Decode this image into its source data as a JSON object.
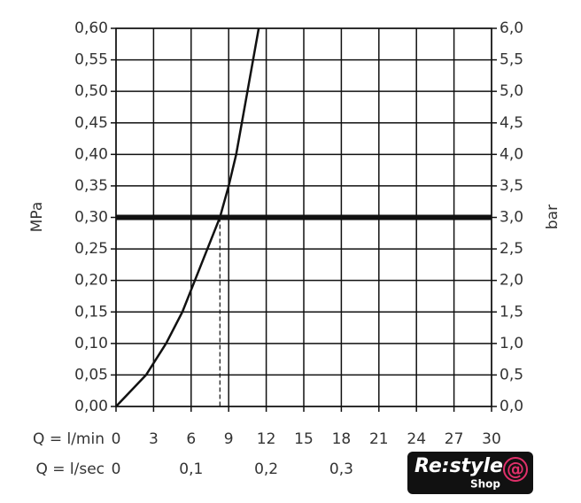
{
  "chart_data": {
    "type": "line",
    "x_label": "Q = l/min",
    "x2_label": "Q = l/sec",
    "y_label": "MPa",
    "y2_label": "bar",
    "x": [
      0,
      2.4,
      4.0,
      5.3,
      6.3,
      7.3,
      8.3,
      9.0,
      9.6,
      10.5,
      11.4
    ],
    "values": [
      0,
      0.05,
      0.1,
      0.15,
      0.2,
      0.25,
      0.3,
      0.35,
      0.4,
      0.5,
      0.6
    ],
    "color": "#111111",
    "xlim": [
      0,
      30
    ],
    "xticks": [
      0,
      3,
      6,
      9,
      12,
      15,
      18,
      21,
      24,
      27,
      30
    ],
    "x2lim": [
      0,
      0.5
    ],
    "x2ticks": [
      0,
      {
        "value": 0.1,
        "label": "0,1"
      },
      {
        "value": 0.2,
        "label": "0,2"
      },
      {
        "value": 0.3,
        "label": "0,3"
      }
    ],
    "ylim": [
      0,
      0.6
    ],
    "yticks": [
      {
        "value": 0,
        "label": "0,00"
      },
      {
        "value": 0.05,
        "label": "0,05"
      },
      {
        "value": 0.1,
        "label": "0,10"
      },
      {
        "value": 0.15,
        "label": "0,15"
      },
      {
        "value": 0.2,
        "label": "0,20"
      },
      {
        "value": 0.25,
        "label": "0,25"
      },
      {
        "value": 0.3,
        "label": "0,30"
      },
      {
        "value": 0.35,
        "label": "0,35"
      },
      {
        "value": 0.4,
        "label": "0,40"
      },
      {
        "value": 0.45,
        "label": "0,45"
      },
      {
        "value": 0.5,
        "label": "0,50"
      },
      {
        "value": 0.55,
        "label": "0,55"
      },
      {
        "value": 0.6,
        "label": "0,60"
      }
    ],
    "y2lim": [
      0,
      6
    ],
    "y2ticks": [
      {
        "value": 0,
        "label": "0,0"
      },
      {
        "value": 0.5,
        "label": "0,5"
      },
      {
        "value": 1,
        "label": "1,0"
      },
      {
        "value": 1.5,
        "label": "1,5"
      },
      {
        "value": 2,
        "label": "2,0"
      },
      {
        "value": 2.5,
        "label": "2,5"
      },
      {
        "value": 3,
        "label": "3,0"
      },
      {
        "value": 3.5,
        "label": "3,5"
      },
      {
        "value": 4,
        "label": "4,0"
      },
      {
        "value": 4.5,
        "label": "4,5"
      },
      {
        "value": 5,
        "label": "5,0"
      },
      {
        "value": 5.5,
        "label": "5,5"
      },
      {
        "value": 6,
        "label": "6,0"
      }
    ],
    "grid": true,
    "highlight": {
      "x": 8.3,
      "y": 0.3
    }
  },
  "watermark": {
    "brand": "Re:style",
    "symbol": "@",
    "sub": "Shop"
  }
}
